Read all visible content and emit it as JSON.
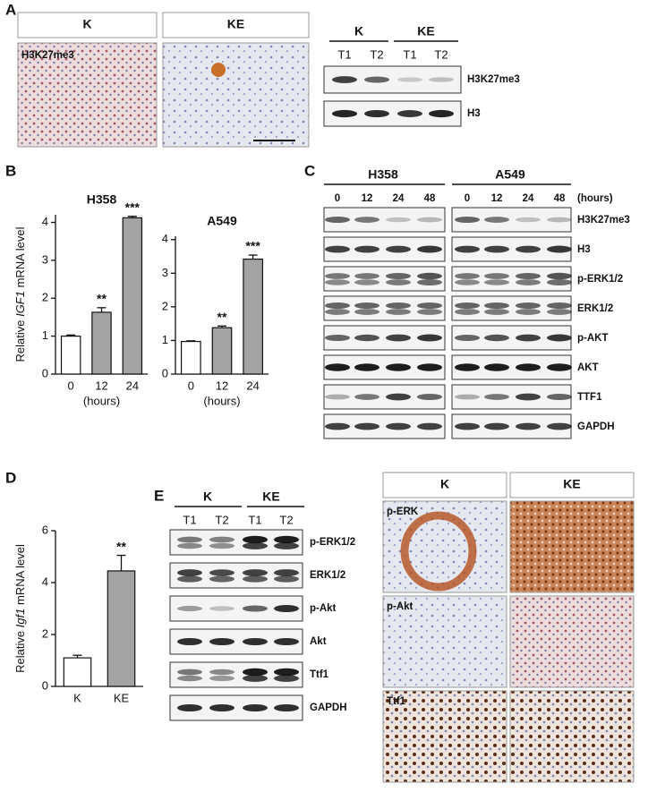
{
  "panel_labels": [
    "A",
    "B",
    "C",
    "D",
    "E"
  ],
  "panel_a": {
    "ihc_headers": [
      "K",
      "KE"
    ],
    "ihc_label": "H3K27me3",
    "blot_groups": [
      "K",
      "KE"
    ],
    "blot_lanes": [
      "T1",
      "T2",
      "T1",
      "T2"
    ],
    "blot_rows": [
      "H3K27me3",
      "H3"
    ]
  },
  "panel_c": {
    "groups": [
      "H358",
      "A549"
    ],
    "lanes": [
      "0",
      "12",
      "24",
      "48",
      "0",
      "12",
      "24",
      "48"
    ],
    "unit": "(hours)",
    "rows": [
      "H3K27me3",
      "H3",
      "p-ERK1/2",
      "ERK1/2",
      "p-AKT",
      "AKT",
      "TTF1",
      "GAPDH"
    ]
  },
  "panel_e": {
    "blot_groups": [
      "K",
      "KE"
    ],
    "blot_lanes": [
      "T1",
      "T2",
      "T1",
      "T2"
    ],
    "blot_rows": [
      "p-ERK1/2",
      "ERK1/2",
      "p-Akt",
      "Akt",
      "Ttf1",
      "GAPDH"
    ],
    "ihc_headers": [
      "K",
      "KE"
    ],
    "ihc_rows": [
      "p-ERK",
      "p-Akt",
      "Ttf1"
    ]
  },
  "chart_data": [
    {
      "type": "bar",
      "title": "H358",
      "y_label": [
        "Relative ",
        "IGF1",
        " mRNA level"
      ],
      "x_label": "(hours)",
      "categories": [
        "0",
        "12",
        "24"
      ],
      "values": [
        1.0,
        1.63,
        4.12
      ],
      "errors": [
        0.03,
        0.12,
        0.04
      ],
      "significance": [
        null,
        "**",
        "***"
      ],
      "colors": [
        "#ffffff",
        "#a3a3a3",
        "#a3a3a3"
      ],
      "ylim": [
        0,
        4.2
      ],
      "yticks": [
        0,
        1,
        2,
        3,
        4
      ]
    },
    {
      "type": "bar",
      "title": "A549",
      "x_label": "(hours)",
      "categories": [
        "0",
        "12",
        "24"
      ],
      "values": [
        0.97,
        1.38,
        3.42
      ],
      "errors": [
        0.02,
        0.05,
        0.12
      ],
      "significance": [
        null,
        "**",
        "***"
      ],
      "colors": [
        "#ffffff",
        "#a3a3a3",
        "#a3a3a3"
      ],
      "ylim": [
        0,
        4.1
      ],
      "yticks": [
        0,
        1,
        2,
        3,
        4
      ]
    },
    {
      "type": "bar",
      "y_label": [
        "Relative ",
        "Igf1",
        " mRNA level"
      ],
      "categories": [
        "K",
        "KE"
      ],
      "values": [
        1.1,
        4.45
      ],
      "errors": [
        0.1,
        0.6
      ],
      "significance": [
        null,
        "**"
      ],
      "colors": [
        "#ffffff",
        "#a3a3a3"
      ],
      "ylim": [
        0,
        6
      ],
      "yticks": [
        0,
        2,
        4,
        6
      ]
    }
  ]
}
